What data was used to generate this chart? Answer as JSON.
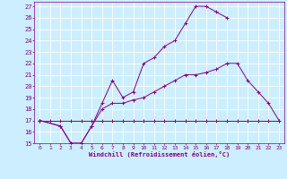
{
  "xlabel": "Windchill (Refroidissement éolien,°C)",
  "background_color": "#cceeff",
  "grid_color": "#ffffff",
  "line_color": "#800080",
  "xlim": [
    -0.5,
    23.5
  ],
  "ylim": [
    15,
    27.4
  ],
  "xticks": [
    0,
    1,
    2,
    3,
    4,
    5,
    6,
    7,
    8,
    9,
    10,
    11,
    12,
    13,
    14,
    15,
    16,
    17,
    18,
    19,
    20,
    21,
    22,
    23
  ],
  "yticks": [
    15,
    16,
    17,
    18,
    19,
    20,
    21,
    22,
    23,
    24,
    25,
    26,
    27
  ],
  "series": [
    {
      "x": [
        0,
        1,
        2,
        3,
        4,
        5,
        6,
        7,
        8,
        9,
        10,
        11,
        12,
        13,
        14,
        15,
        16,
        17,
        18,
        19,
        20,
        21,
        22,
        23
      ],
      "y": [
        17,
        17,
        17,
        17,
        17,
        17,
        17,
        17,
        17,
        17,
        17,
        17,
        17,
        17,
        17,
        17,
        17,
        17,
        17,
        17,
        17,
        17,
        17,
        17
      ]
    },
    {
      "x": [
        0,
        2,
        3,
        4,
        5,
        6,
        7,
        8,
        9,
        10,
        11,
        12,
        13,
        14,
        15,
        16,
        17,
        18,
        19,
        20,
        21,
        22,
        23
      ],
      "y": [
        17,
        16.5,
        15,
        15,
        16.5,
        18,
        18.5,
        18.5,
        18.8,
        19,
        19.5,
        20,
        20.5,
        21,
        21,
        21.2,
        21.5,
        22,
        22,
        20.5,
        19.5,
        18.5,
        17
      ]
    },
    {
      "x": [
        0,
        2,
        3,
        4,
        5,
        6,
        7,
        8,
        9,
        10,
        11,
        12,
        13,
        14,
        15,
        16,
        17,
        18
      ],
      "y": [
        17,
        16.5,
        15,
        15,
        16.5,
        18.5,
        20.5,
        19,
        19.5,
        22,
        22.5,
        23.5,
        24,
        25.5,
        27,
        27,
        26.5,
        26
      ]
    }
  ]
}
